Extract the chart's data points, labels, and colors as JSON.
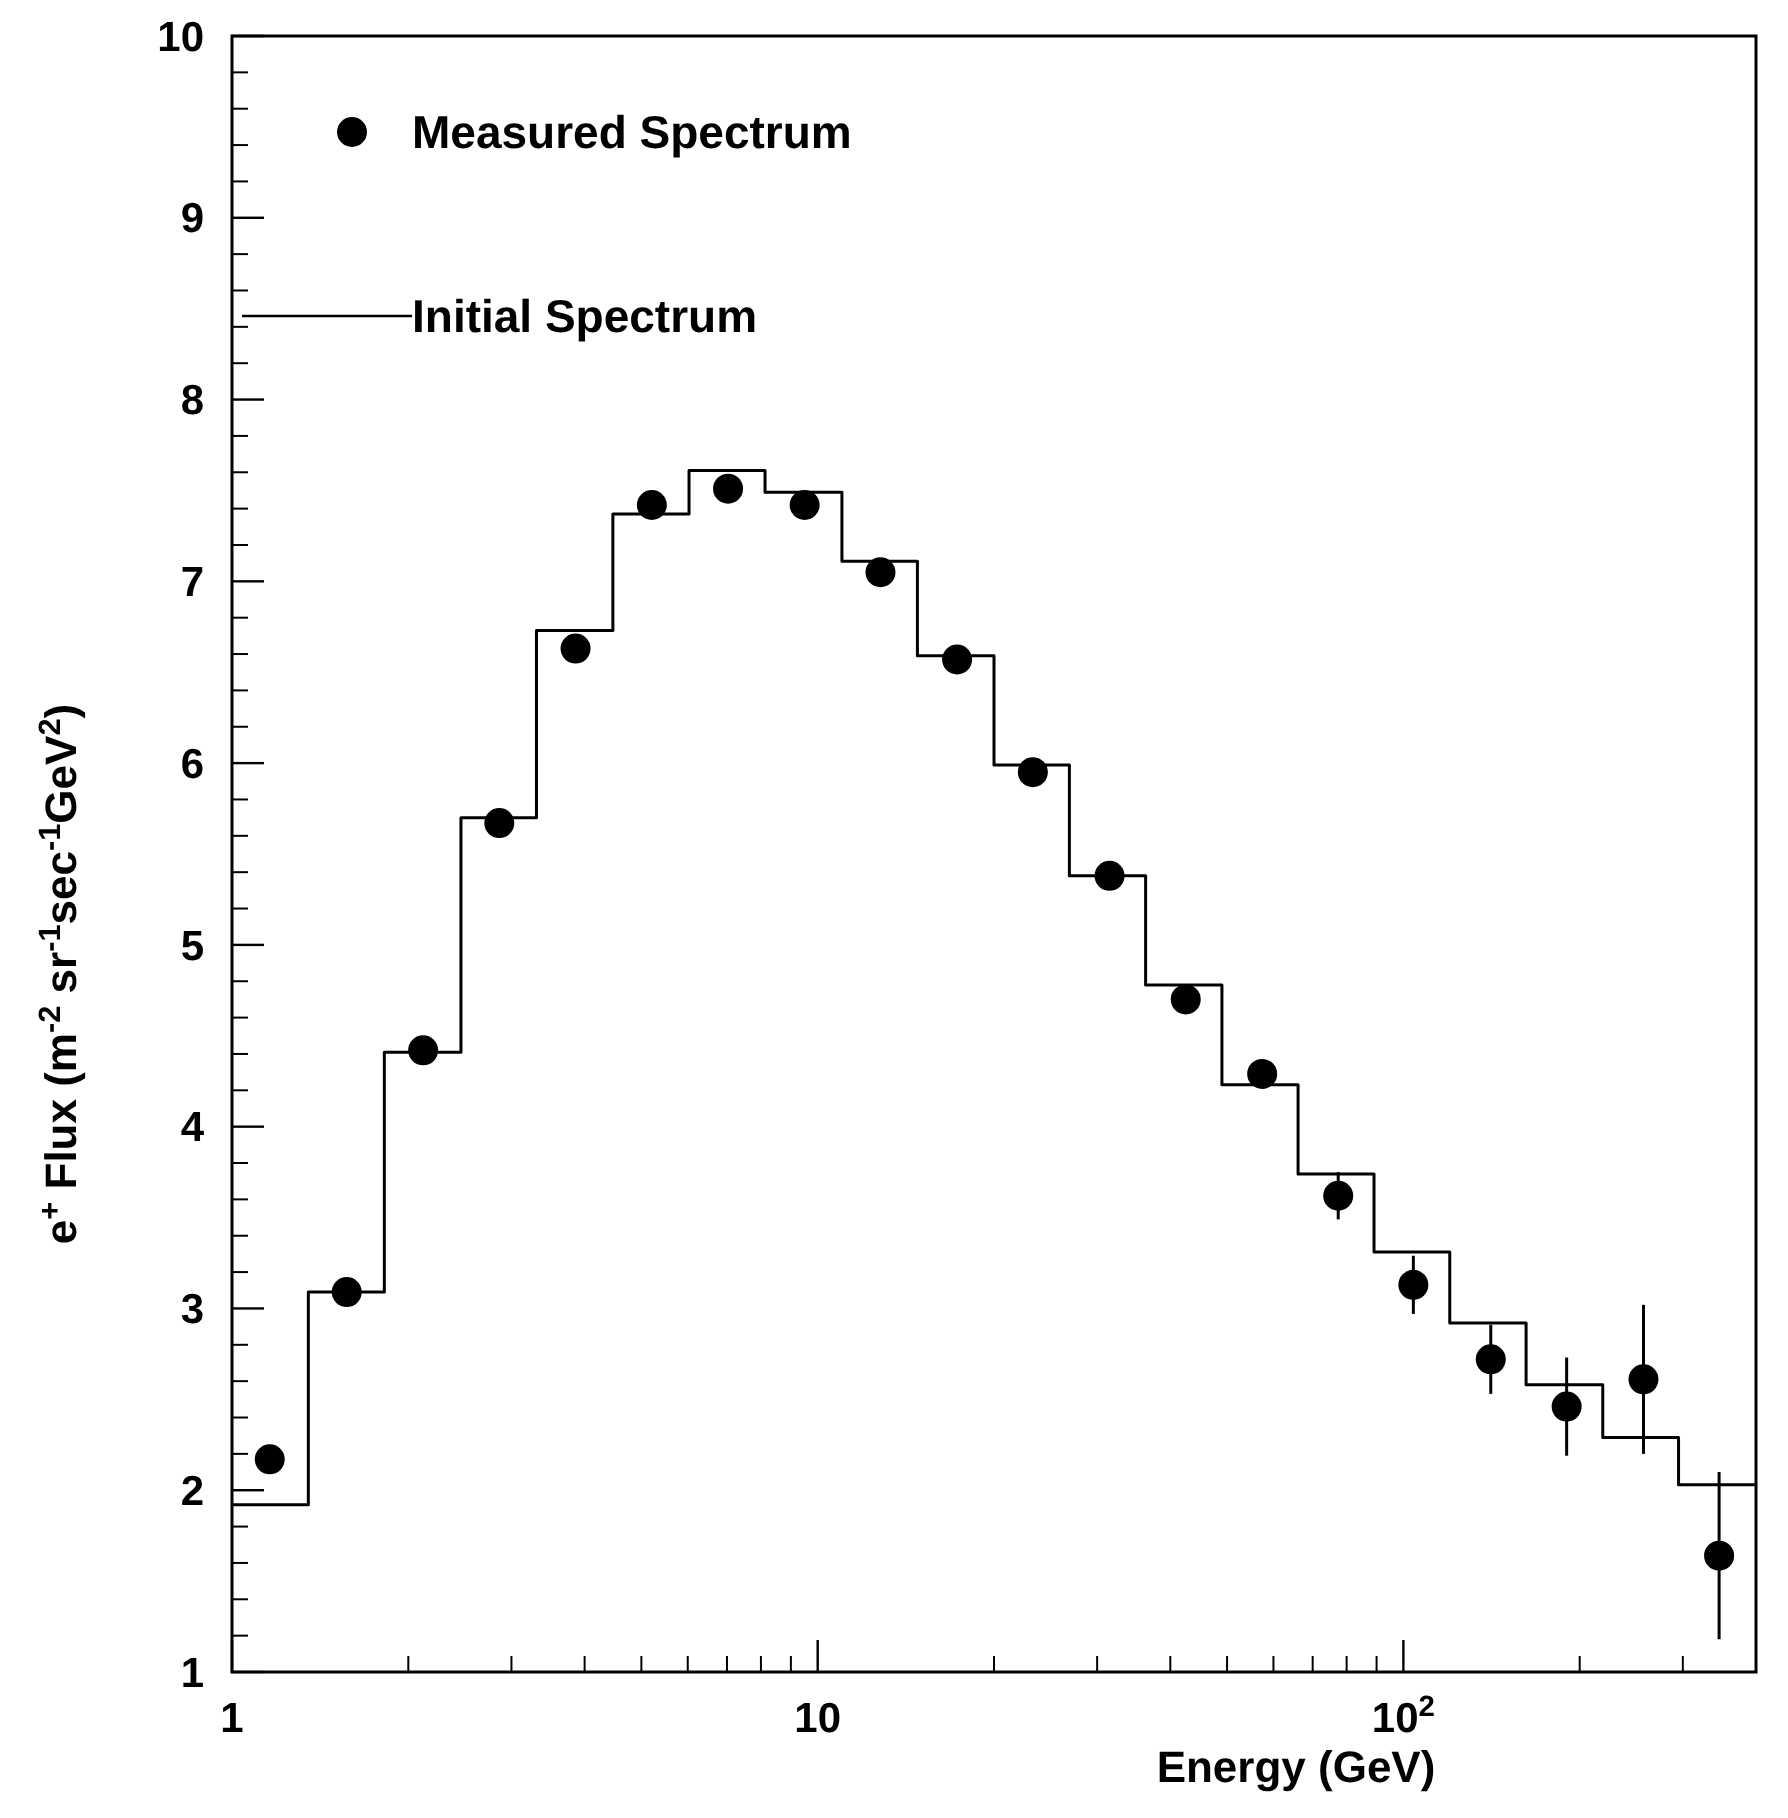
{
  "chart_data": {
    "type": "histogram",
    "xlabel": "Energy (GeV)",
    "ylabel": "e$^{+}$ Flux (m$^{-2}$ sr$^{-1}$sec$^{-1}$GeV$^{2}$)",
    "log": "x",
    "xlim": [
      1,
      400
    ],
    "ylim": [
      1,
      10
    ],
    "xticks": [
      1,
      10,
      {
        "value": 100,
        "label": "10$^{2}$"
      }
    ],
    "yticks": [
      1,
      2,
      3,
      4,
      5,
      6,
      7,
      8,
      9,
      10
    ],
    "grid": false,
    "legend": "top left",
    "series": [
      {
        "name": "Measured Spectrum",
        "type": "scatter",
        "color": "#000000",
        "marker": "circle",
        "x": [
          1.16,
          1.57,
          2.12,
          2.86,
          3.86,
          5.21,
          7.03,
          9.5,
          12.8,
          17.3,
          23.3,
          31.5,
          42.5,
          57.4,
          77.4,
          104,
          141,
          190,
          257,
          346
        ],
        "values": [
          2.17,
          3.09,
          4.42,
          5.67,
          6.63,
          7.42,
          7.51,
          7.42,
          7.05,
          6.57,
          5.95,
          5.38,
          4.7,
          4.29,
          3.62,
          3.13,
          2.72,
          2.46,
          2.61,
          1.64
        ],
        "errors": [
          null,
          null,
          null,
          null,
          null,
          null,
          null,
          null,
          null,
          null,
          null,
          null,
          null,
          0.04,
          0.13,
          0.16,
          0.19,
          0.27,
          0.41,
          0.46
        ]
      },
      {
        "name": "Initial Spectrum",
        "color": "#000000",
        "line_style": "solid",
        "bins": [
          1,
          1.35,
          1.82,
          2.46,
          3.31,
          4.47,
          6.03,
          8.13,
          11,
          14.8,
          20,
          26.9,
          36.3,
          49,
          66.1,
          89.1,
          120,
          162,
          219,
          295,
          398
        ],
        "values": [
          1.92,
          3.09,
          4.41,
          5.7,
          6.73,
          7.37,
          7.61,
          7.49,
          7.11,
          6.59,
          5.99,
          5.38,
          4.78,
          4.23,
          3.74,
          3.31,
          2.92,
          2.58,
          2.29,
          2.03
        ]
      }
    ]
  }
}
